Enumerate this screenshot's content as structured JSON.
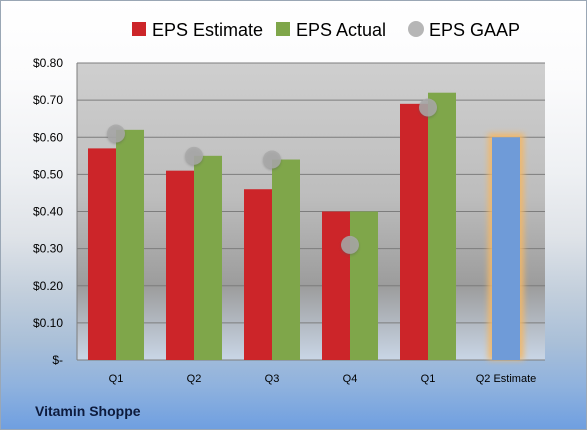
{
  "company": "Vitamin Shoppe",
  "colors": {
    "estimate": "#cc2529",
    "actual": "#7fa64a",
    "gaap": "#a9a9a9",
    "future_estimate": "#6f9bd8",
    "future_glow": "#f3b867"
  },
  "chart_data": {
    "type": "bar",
    "categories": [
      "Q1",
      "Q2",
      "Q3",
      "Q4",
      "Q1",
      "Q2 Estimate"
    ],
    "series": [
      {
        "name": "EPS Estimate",
        "values": [
          0.57,
          0.51,
          0.46,
          0.4,
          0.69,
          0.6
        ]
      },
      {
        "name": "EPS Actual",
        "values": [
          0.62,
          0.55,
          0.54,
          0.4,
          0.72,
          null
        ]
      },
      {
        "name": "EPS GAAP",
        "values": [
          0.61,
          0.55,
          0.54,
          0.31,
          0.68,
          null
        ]
      }
    ],
    "legend": [
      "EPS Estimate",
      "EPS Actual",
      "EPS GAAP"
    ],
    "legend_position": "top",
    "ylim": [
      0,
      0.8
    ],
    "yticks": [
      {
        "value": 0.0,
        "label": "$-"
      },
      {
        "value": 0.1,
        "label": "$0.10"
      },
      {
        "value": 0.2,
        "label": "$0.20"
      },
      {
        "value": 0.3,
        "label": "$0.30"
      },
      {
        "value": 0.4,
        "label": "$0.40"
      },
      {
        "value": 0.5,
        "label": "$0.50"
      },
      {
        "value": 0.6,
        "label": "$0.60"
      },
      {
        "value": 0.7,
        "label": "$0.70"
      },
      {
        "value": 0.8,
        "label": "$0.80"
      }
    ],
    "grid": true
  }
}
